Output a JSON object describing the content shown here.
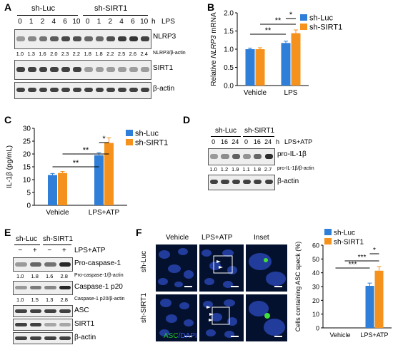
{
  "panels": {
    "A": {
      "letter": "A",
      "groups": [
        "sh-Luc",
        "sh-SIRT1"
      ],
      "time_unit": "h",
      "treatment": "LPS",
      "times": [
        "0",
        "1",
        "2",
        "4",
        "6",
        "10",
        "0",
        "1",
        "2",
        "4",
        "6",
        "10"
      ],
      "blot_labels": [
        "NLRP3",
        "SIRT1",
        "β-actin"
      ],
      "ratio_label": "NLRP3/β-actin",
      "ratios": [
        "1.0",
        "1.3",
        "1.6",
        "2.0",
        "2.3",
        "2.2",
        "1.8",
        "1.8",
        "2.2",
        "2.5",
        "2.6",
        "2.4"
      ]
    },
    "B": {
      "letter": "B"
    },
    "C": {
      "letter": "C"
    },
    "D": {
      "letter": "D",
      "groups": [
        "sh-Luc",
        "sh-SIRT1"
      ],
      "time_unit": "h",
      "treatment": "LPS+ATP",
      "times": [
        "0",
        "16",
        "24",
        "0",
        "16",
        "24"
      ],
      "blot_labels": [
        "pro-IL-1β",
        "β-actin"
      ],
      "ratio_label": "pro-IL-1β/β-actin",
      "ratios": [
        "1.0",
        "1.2",
        "1.9",
        "1.1",
        "1.8",
        "2.7"
      ]
    },
    "E": {
      "letter": "E",
      "groups": [
        "sh-Luc",
        "sh-SIRT1"
      ],
      "treatment": "LPS+ATP",
      "signs": [
        "−",
        "+",
        "−",
        "+"
      ],
      "blot_labels": [
        "Pro-caspase-1",
        "Caspase-1 p20",
        "ASC",
        "SIRT1",
        "β-actin"
      ],
      "ratio_labels": [
        "Pro-caspase-1/β-actin",
        "Caspase-1 p20/β-actin"
      ],
      "ratios_pro": [
        "1.0",
        "1.8",
        "1.6",
        "2.8"
      ],
      "ratios_p20": [
        "1.0",
        "1.5",
        "1.3",
        "2.8"
      ]
    },
    "F": {
      "letter": "F",
      "columns": [
        "Vehicle",
        "LPS+ATP",
        "Inset"
      ],
      "rows": [
        "sh-Luc",
        "sh-SIRT1"
      ],
      "stain_asc": "ASC",
      "stain_sep": "/",
      "stain_dapi": "DAPI"
    }
  },
  "colors": {
    "sh_luc": "#2f7ed8",
    "sh_sirt1": "#f5921e",
    "asc": "#22c02a",
    "dapi": "#3b58e6"
  },
  "chart_data": [
    {
      "panel": "B",
      "type": "bar",
      "categories": [
        "Vehicle",
        "LPS"
      ],
      "series": [
        {
          "name": "sh-Luc",
          "values": [
            1.0,
            1.17
          ],
          "errors": [
            0.03,
            0.05
          ]
        },
        {
          "name": "sh-SIRT1",
          "values": [
            1.0,
            1.44
          ],
          "errors": [
            0.04,
            0.09
          ]
        }
      ],
      "ylabel_prefix": "Relative ",
      "ylabel_gene": "NLRP3",
      "ylabel_suffix": " mRNA",
      "ylim": [
        0,
        2.0
      ],
      "yticks": [
        "0.0",
        "0.5",
        "1.0",
        "1.5",
        "2.0"
      ],
      "significance": [
        "**",
        "**",
        "*"
      ],
      "legend": "top-right"
    },
    {
      "panel": "C",
      "type": "bar",
      "categories": [
        "Vehicle",
        "LPS+ATP"
      ],
      "series": [
        {
          "name": "sh-Luc",
          "values": [
            11.8,
            19.5
          ],
          "errors": [
            0.6,
            1.0
          ]
        },
        {
          "name": "sh-SIRT1",
          "values": [
            12.6,
            24.3
          ],
          "errors": [
            0.6,
            2.0
          ]
        }
      ],
      "ylabel": "IL-1β (pg/mL)",
      "ylim": [
        0,
        30
      ],
      "yticks": [
        "0",
        "5",
        "10",
        "15",
        "20",
        "25",
        "30"
      ],
      "significance": [
        "**",
        "**",
        "*"
      ],
      "legend": "top-right"
    },
    {
      "panel": "F",
      "type": "bar",
      "categories": [
        "Vehicle",
        "LPS+ATP"
      ],
      "series": [
        {
          "name": "sh-Luc",
          "values": [
            0,
            30.5
          ],
          "errors": [
            0,
            2.0
          ]
        },
        {
          "name": "sh-SIRT1",
          "values": [
            0,
            41.5
          ],
          "errors": [
            0,
            3.0
          ]
        }
      ],
      "ylabel": "Cells containing ASC speck (%)",
      "ylim": [
        0,
        60
      ],
      "yticks": [
        "0",
        "10",
        "20",
        "30",
        "40",
        "50",
        "60"
      ],
      "significance": [
        "***",
        "***",
        "*"
      ],
      "legend": "top-right"
    }
  ]
}
